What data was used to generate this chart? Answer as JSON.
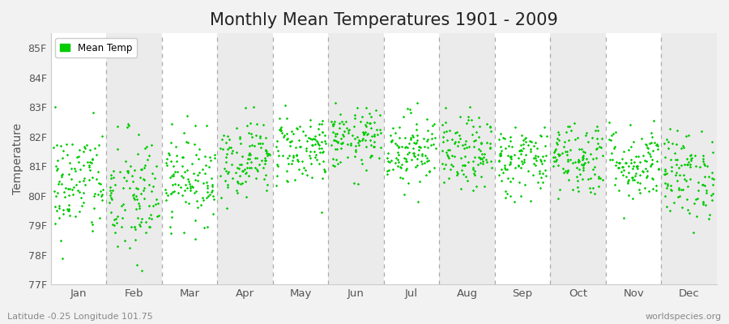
{
  "title": "Monthly Mean Temperatures 1901 - 2009",
  "ylabel": "Temperature",
  "xlabel_bottom_left": "Latitude -0.25 Longitude 101.75",
  "xlabel_bottom_right": "worldspecies.org",
  "legend_label": "Mean Temp",
  "ylim": [
    77,
    85.5
  ],
  "yticks": [
    77,
    78,
    79,
    80,
    81,
    82,
    83,
    84,
    85
  ],
  "ytick_labels": [
    "77F",
    "78F",
    "79F",
    "80F",
    "81F",
    "82F",
    "83F",
    "84F",
    "85F"
  ],
  "months": [
    "Jan",
    "Feb",
    "Mar",
    "Apr",
    "May",
    "Jun",
    "Jul",
    "Aug",
    "Sep",
    "Oct",
    "Nov",
    "Dec"
  ],
  "dot_color": "#00CC00",
  "background_color": "#F2F2F2",
  "band_colors": [
    "#FFFFFF",
    "#EBEBEB"
  ],
  "title_fontsize": 15,
  "n_years": 109,
  "seed": 42,
  "monthly_means": [
    80.4,
    79.9,
    80.6,
    81.3,
    81.6,
    81.9,
    81.6,
    81.4,
    81.2,
    81.3,
    81.1,
    80.7
  ],
  "monthly_stds": [
    0.95,
    1.15,
    0.75,
    0.65,
    0.62,
    0.52,
    0.62,
    0.62,
    0.62,
    0.65,
    0.65,
    0.75
  ],
  "dashed_line_color": "#AAAAAA",
  "spine_color": "#CCCCCC",
  "tick_color": "#555555"
}
